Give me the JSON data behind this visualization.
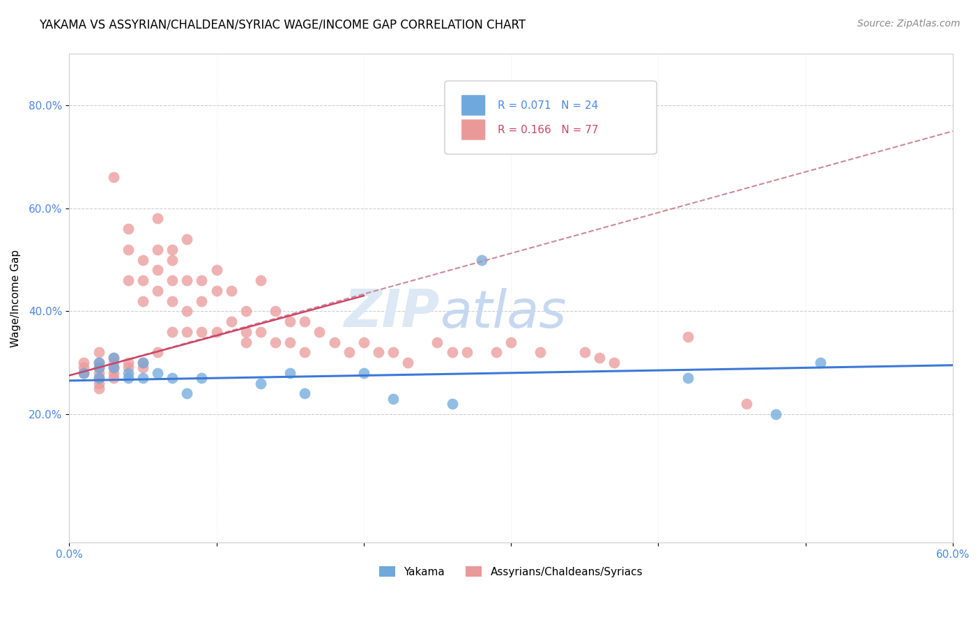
{
  "title": "YAKAMA VS ASSYRIAN/CHALDEAN/SYRIAC WAGE/INCOME GAP CORRELATION CHART",
  "source": "Source: ZipAtlas.com",
  "ylabel": "Wage/Income Gap",
  "blue_color": "#6fa8dc",
  "pink_color": "#ea9999",
  "blue_line_color": "#3c78d8",
  "pink_line_color": "#cc4466",
  "dashed_line_color": "#cc8899",
  "watermark_color": "#dde8f5",
  "xlim": [
    0.0,
    0.6
  ],
  "ylim": [
    -0.05,
    0.9
  ],
  "ytick_vals": [
    0.2,
    0.4,
    0.6,
    0.8
  ],
  "ytick_labels": [
    "20.0%",
    "40.0%",
    "60.0%",
    "80.0%"
  ],
  "xtick_vals": [
    0.0,
    0.1,
    0.2,
    0.3,
    0.4,
    0.5,
    0.6
  ],
  "xtick_labels": [
    "0.0%",
    "",
    "",
    "",
    "",
    "",
    "60.0%"
  ],
  "legend_text1": "R = 0.071   N = 24",
  "legend_text2": "R = 0.166   N = 77",
  "legend_color1": "#4a86e8",
  "legend_color2": "#cc4466",
  "yakama_x": [
    0.01,
    0.02,
    0.02,
    0.02,
    0.03,
    0.03,
    0.04,
    0.04,
    0.05,
    0.05,
    0.06,
    0.07,
    0.08,
    0.09,
    0.13,
    0.15,
    0.16,
    0.2,
    0.22,
    0.26,
    0.28,
    0.42,
    0.48,
    0.51
  ],
  "yakama_y": [
    0.28,
    0.3,
    0.29,
    0.27,
    0.31,
    0.29,
    0.28,
    0.27,
    0.3,
    0.27,
    0.28,
    0.27,
    0.24,
    0.27,
    0.26,
    0.28,
    0.24,
    0.28,
    0.23,
    0.22,
    0.5,
    0.27,
    0.2,
    0.3
  ],
  "assyrian_x": [
    0.01,
    0.01,
    0.01,
    0.02,
    0.02,
    0.02,
    0.02,
    0.02,
    0.02,
    0.02,
    0.03,
    0.03,
    0.03,
    0.03,
    0.03,
    0.03,
    0.04,
    0.04,
    0.04,
    0.04,
    0.04,
    0.05,
    0.05,
    0.05,
    0.05,
    0.05,
    0.06,
    0.06,
    0.06,
    0.06,
    0.06,
    0.07,
    0.07,
    0.07,
    0.07,
    0.07,
    0.08,
    0.08,
    0.08,
    0.08,
    0.09,
    0.09,
    0.09,
    0.1,
    0.1,
    0.1,
    0.11,
    0.11,
    0.12,
    0.12,
    0.12,
    0.13,
    0.13,
    0.14,
    0.14,
    0.15,
    0.15,
    0.16,
    0.16,
    0.17,
    0.18,
    0.19,
    0.2,
    0.21,
    0.22,
    0.23,
    0.25,
    0.26,
    0.27,
    0.29,
    0.3,
    0.32,
    0.35,
    0.36,
    0.37,
    0.42,
    0.46
  ],
  "assyrian_y": [
    0.3,
    0.29,
    0.28,
    0.32,
    0.3,
    0.29,
    0.28,
    0.27,
    0.26,
    0.25,
    0.66,
    0.31,
    0.3,
    0.29,
    0.28,
    0.27,
    0.56,
    0.52,
    0.46,
    0.3,
    0.29,
    0.5,
    0.46,
    0.42,
    0.3,
    0.29,
    0.58,
    0.52,
    0.48,
    0.44,
    0.32,
    0.52,
    0.5,
    0.46,
    0.42,
    0.36,
    0.54,
    0.46,
    0.4,
    0.36,
    0.46,
    0.42,
    0.36,
    0.48,
    0.44,
    0.36,
    0.44,
    0.38,
    0.4,
    0.36,
    0.34,
    0.46,
    0.36,
    0.4,
    0.34,
    0.38,
    0.34,
    0.38,
    0.32,
    0.36,
    0.34,
    0.32,
    0.34,
    0.32,
    0.32,
    0.3,
    0.34,
    0.32,
    0.32,
    0.32,
    0.34,
    0.32,
    0.32,
    0.31,
    0.3,
    0.35,
    0.22
  ],
  "blue_trendline": [
    0.0,
    0.6,
    0.265,
    0.295
  ],
  "pink_trendline_solid": [
    0.0,
    0.2,
    0.275,
    0.43
  ],
  "pink_trendline_dashed": [
    0.0,
    0.6,
    0.275,
    0.75
  ]
}
